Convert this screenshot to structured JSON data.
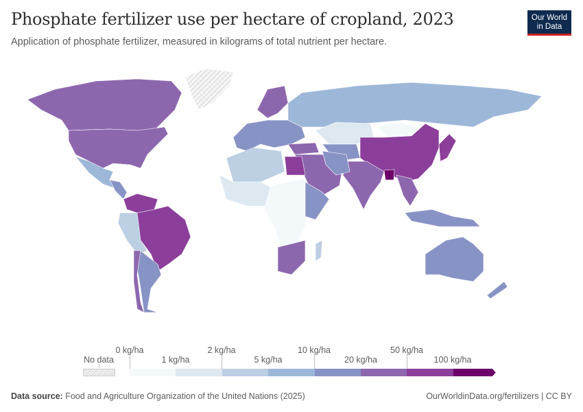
{
  "header": {
    "title": "Phosphate fertilizer use per hectare of cropland, 2023",
    "subtitle": "Application of phosphate fertilizer, measured in kilograms of total nutrient per hectare.",
    "logo": [
      "Our World",
      "in Data"
    ]
  },
  "legend": {
    "no_data_label": "No data",
    "ticks": [
      "0 kg/ha",
      "1 kg/ha",
      "2 kg/ha",
      "5 kg/ha",
      "10 kg/ha",
      "20 kg/ha",
      "50 kg/ha",
      "100 kg/ha"
    ],
    "colors": [
      "#f3f8fb",
      "#dde8f1",
      "#bccfe3",
      "#9db7d8",
      "#8893c5",
      "#8d67ae",
      "#8b3e9a",
      "#6b0068"
    ]
  },
  "footer": {
    "source_label": "Data source:",
    "source": "Food and Agriculture Organization of the United Nations (2025)",
    "link": "OurWorldinData.org/fertilizers | CC BY"
  }
}
